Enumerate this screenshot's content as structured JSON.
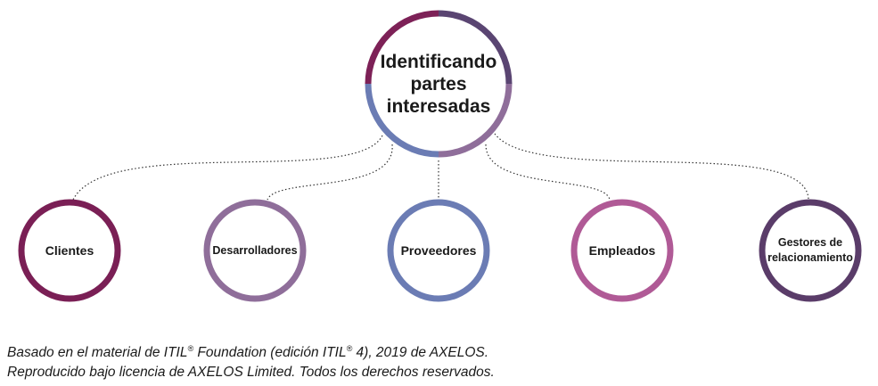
{
  "central": {
    "lines": [
      "Identificando",
      "partes",
      "interesadas"
    ],
    "arc_colors": [
      "#7d2157",
      "#5a4572",
      "#8f6e9a",
      "#6b7cb4"
    ]
  },
  "stakeholders": [
    {
      "key": "clientes",
      "label": "Clientes",
      "color": "#7a1f55"
    },
    {
      "key": "desarrolladores",
      "label": "Desarrolladores",
      "color": "#8f6e9a"
    },
    {
      "key": "proveedores",
      "label": "Proveedores",
      "color": "#6b7cb4"
    },
    {
      "key": "empleados",
      "label": "Empleados",
      "color": "#b05a96"
    },
    {
      "key": "gestores",
      "label": "Gestores de relacionamiento",
      "color": "#5a3c69"
    }
  ],
  "footnote": {
    "line1_part1": "Basado en el material de ITIL",
    "line1_part2": " Foundation (edición ITIL",
    "line1_part3": " 4), 2019 de AXELOS.",
    "registered_mark": "®",
    "line2": "Reproducido bajo licencia de AXELOS Limited. Todos los derechos reservados."
  }
}
